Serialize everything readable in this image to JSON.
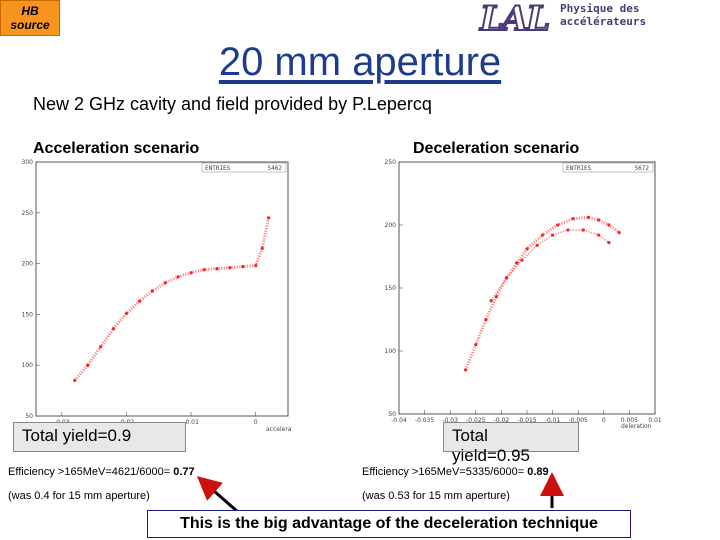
{
  "badge": {
    "line1": "HB",
    "line2": "source"
  },
  "logo": {
    "mark": "LAL",
    "subtitle": "Physique des accélérateurs"
  },
  "title": "20 mm aperture",
  "subtitle": "New 2 GHz cavity and field provided by P.Lepercq",
  "colors": {
    "title": "#1f3c8c",
    "badge": "#f7941d",
    "points": "#ff2020",
    "arrow": "#cc1010"
  },
  "acceleration": {
    "heading": "Acceleration scenario",
    "entries_label": "ENTRIES",
    "entries_value": "5462",
    "yield": "Total yield=0.9",
    "efficiency_text": "Efficiency >165MeV=4621/6000= ",
    "efficiency_value": "0.77",
    "was": "(was 0.4 for 15 mm aperture)"
  },
  "deceleration": {
    "heading": "Deceleration scenario",
    "entries_label": "ENTRIES",
    "entries_value": "5672",
    "yield": "Total yield=0.95",
    "efficiency_text": "Efficiency >165MeV=5335/6000= ",
    "efficiency_value": "0.89",
    "was": "(was 0.53 for 15 mm aperture)"
  },
  "conclusion": "This is the big advantage of the deceleration technique",
  "chart_data": [
    {
      "type": "scatter",
      "title": "",
      "xlabel": "acceleration",
      "ylabel": "",
      "xlim": [
        -0.034,
        0.005
      ],
      "ylim": [
        50,
        300
      ],
      "x_ticks": [
        "-0.03",
        "-0.02",
        "-0.01",
        "0"
      ],
      "y_ticks": [
        "50",
        "100",
        "150",
        "200",
        "250",
        "300"
      ],
      "series": [
        {
          "values": [
            {
              "x": -0.028,
              "y": 85
            },
            {
              "x": -0.026,
              "y": 100
            },
            {
              "x": -0.024,
              "y": 118
            },
            {
              "x": -0.022,
              "y": 136
            },
            {
              "x": -0.02,
              "y": 151
            },
            {
              "x": -0.018,
              "y": 163
            },
            {
              "x": -0.016,
              "y": 173
            },
            {
              "x": -0.014,
              "y": 181
            },
            {
              "x": -0.012,
              "y": 187
            },
            {
              "x": -0.01,
              "y": 191
            },
            {
              "x": -0.008,
              "y": 194
            },
            {
              "x": -0.006,
              "y": 195
            },
            {
              "x": -0.004,
              "y": 196
            },
            {
              "x": -0.002,
              "y": 197
            },
            {
              "x": 0.0,
              "y": 198
            },
            {
              "x": 0.001,
              "y": 215
            },
            {
              "x": 0.002,
              "y": 245
            }
          ]
        }
      ]
    },
    {
      "type": "scatter",
      "title": "",
      "xlabel": "deleration",
      "ylabel": "",
      "xlim": [
        -0.04,
        0.01
      ],
      "ylim": [
        50,
        250
      ],
      "x_ticks": [
        "-0.04",
        "-0.035",
        "-0.03",
        "-0.025",
        "-0.02",
        "-0.015",
        "-0.01",
        "-0.005",
        "0",
        "0.005",
        "0.01"
      ],
      "y_ticks": [
        "50",
        "100",
        "150",
        "200",
        "250"
      ],
      "series": [
        {
          "values": [
            {
              "x": -0.027,
              "y": 85
            },
            {
              "x": -0.025,
              "y": 105
            },
            {
              "x": -0.023,
              "y": 125
            },
            {
              "x": -0.021,
              "y": 143
            },
            {
              "x": -0.019,
              "y": 158
            },
            {
              "x": -0.017,
              "y": 170
            },
            {
              "x": -0.015,
              "y": 181
            },
            {
              "x": -0.012,
              "y": 192
            },
            {
              "x": -0.009,
              "y": 200
            },
            {
              "x": -0.006,
              "y": 205
            },
            {
              "x": -0.003,
              "y": 206
            },
            {
              "x": -0.001,
              "y": 204
            },
            {
              "x": 0.001,
              "y": 200
            },
            {
              "x": 0.003,
              "y": 194
            }
          ]
        },
        {
          "values": [
            {
              "x": -0.022,
              "y": 140
            },
            {
              "x": -0.019,
              "y": 158
            },
            {
              "x": -0.016,
              "y": 172
            },
            {
              "x": -0.013,
              "y": 184
            },
            {
              "x": -0.01,
              "y": 192
            },
            {
              "x": -0.007,
              "y": 196
            },
            {
              "x": -0.004,
              "y": 196
            },
            {
              "x": -0.001,
              "y": 192
            },
            {
              "x": 0.001,
              "y": 186
            }
          ]
        }
      ]
    }
  ]
}
